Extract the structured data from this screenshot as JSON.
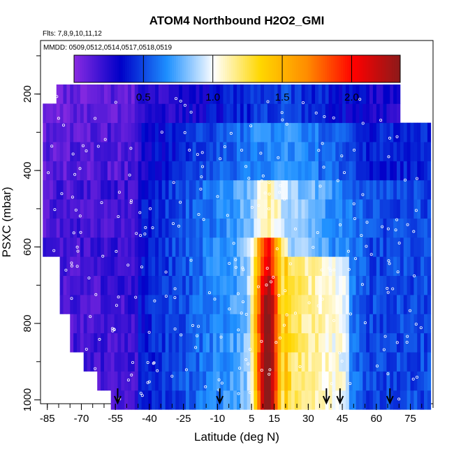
{
  "chart_data": {
    "type": "heatmap",
    "title": "ATOM4 Northbound H2O2_GMI",
    "flights_note": "Flts: 7,8,9,10,11,12",
    "dates_note": "MMDD: 0509,0512,0514,0517,0518,0519",
    "xlabel": "Latitude (deg N)",
    "ylabel": "PSXC (mbar)",
    "xlim": [
      -88,
      85
    ],
    "ylim": [
      1010,
      60
    ],
    "x_ticks": [
      -85,
      -70,
      -55,
      -40,
      -25,
      -10,
      5,
      15,
      30,
      45,
      60,
      75
    ],
    "y_ticks": [
      200,
      400,
      600,
      800,
      1000
    ],
    "colorbar": {
      "range": [
        0,
        2.35
      ],
      "ticks": [
        0.5,
        1.0,
        1.5,
        2.0
      ],
      "tick_labels": [
        "0.5",
        "1.0",
        "1.5",
        "2.0"
      ],
      "colors": [
        "#8a2be2",
        "#0000c8",
        "#1e90ff",
        "#ffffff",
        "#ffd700",
        "#ff8c00",
        "#ff0000",
        "#8b1a1a"
      ]
    },
    "arrow_latitudes": [
      -54,
      -9,
      38,
      44,
      66
    ],
    "pressure_levels": [
      1000,
      950,
      900,
      850,
      800,
      750,
      700,
      650,
      600,
      550,
      500,
      450,
      400,
      350,
      300,
      250,
      200
    ],
    "field_description": "gridded H2O2 mixing ratio by latitude and pressure; 0.1-0.4 poleward of 40S, 0.4-1.0 in tropics, maximum ~2.3 near 10-20N below 700 mbar, ~0.6-1.4 at 20-50N"
  }
}
